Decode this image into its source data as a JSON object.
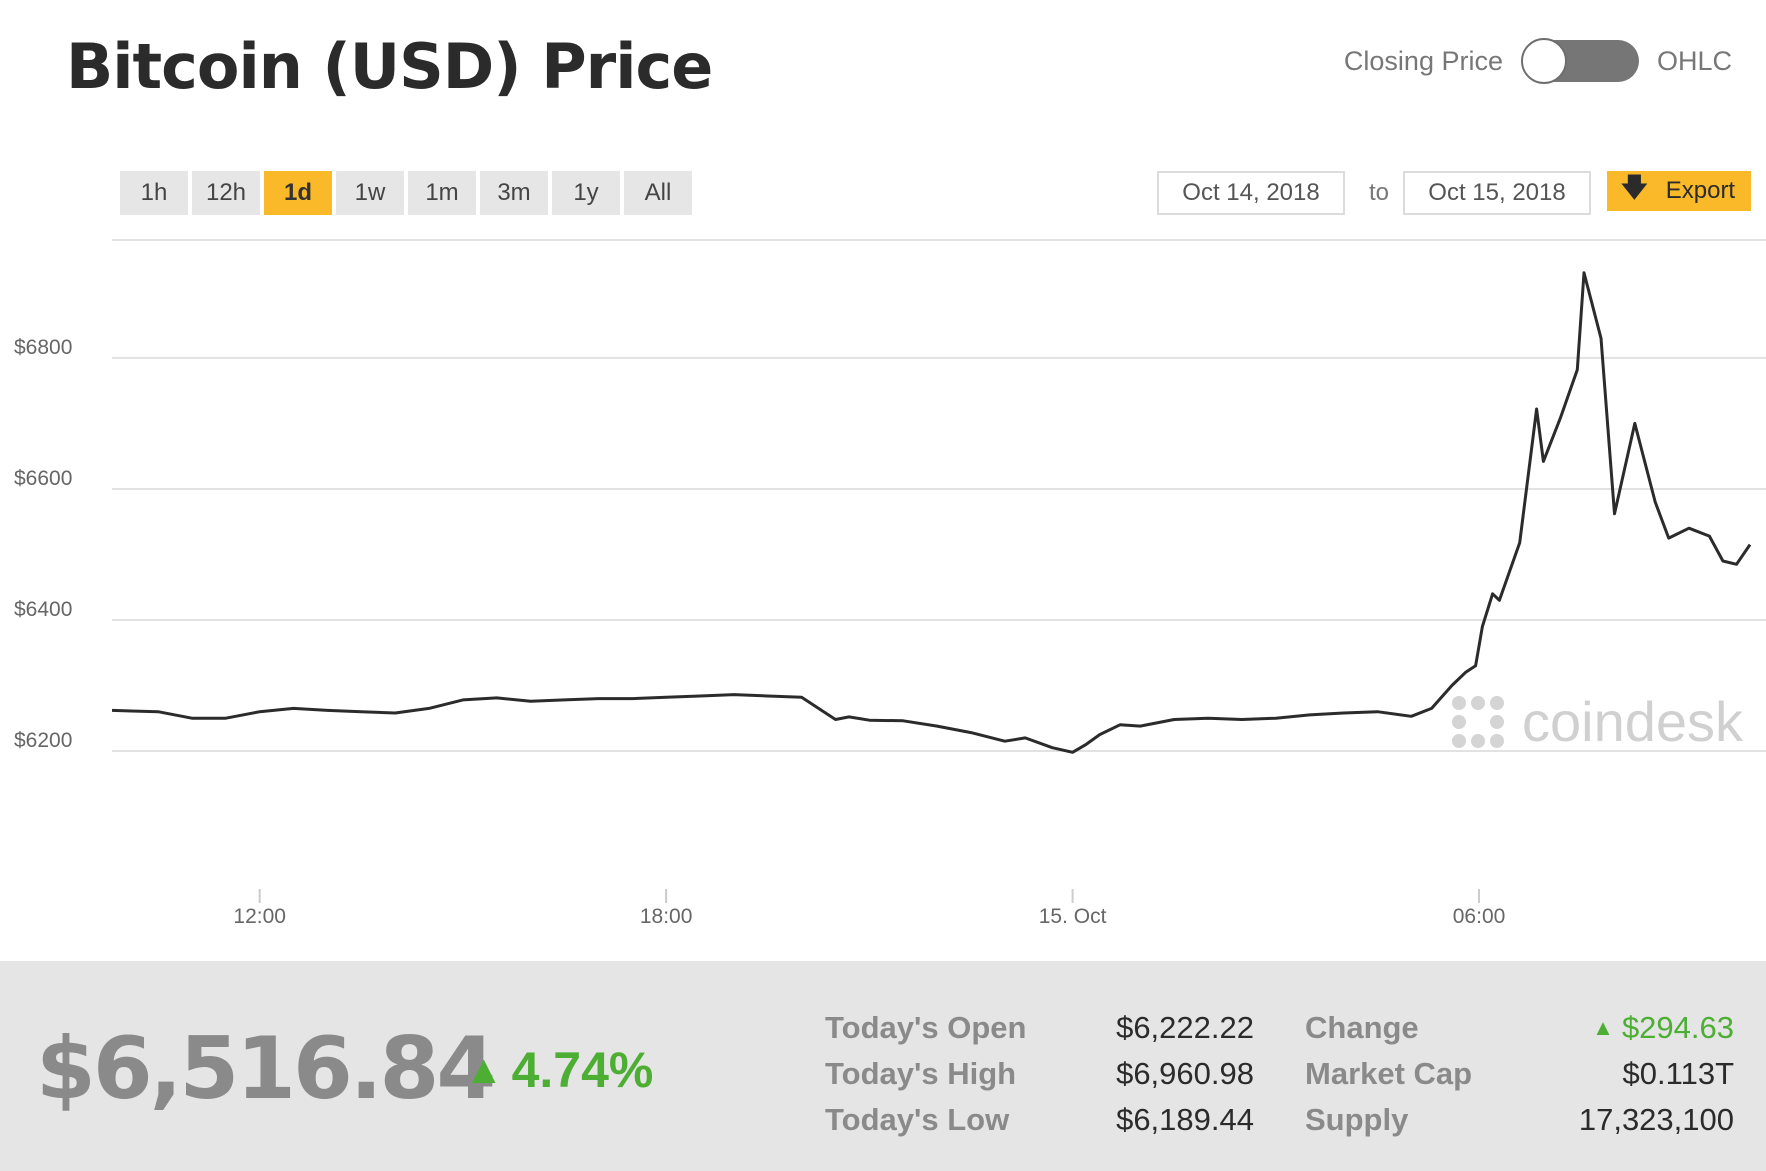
{
  "header": {
    "title": "Bitcoin (USD) Price"
  },
  "price_toggle": {
    "left_label": "Closing Price",
    "right_label": "OHLC",
    "selected": "Closing Price"
  },
  "range_buttons": [
    {
      "label": "1h",
      "active": false
    },
    {
      "label": "12h",
      "active": false
    },
    {
      "label": "1d",
      "active": true
    },
    {
      "label": "1w",
      "active": false
    },
    {
      "label": "1m",
      "active": false
    },
    {
      "label": "3m",
      "active": false
    },
    {
      "label": "1y",
      "active": false
    },
    {
      "label": "All",
      "active": false
    }
  ],
  "date_range": {
    "from": "Oct 14, 2018",
    "to_label": "to",
    "to": "Oct 15, 2018"
  },
  "export": {
    "label": "Export",
    "icon": "download-arrow-icon"
  },
  "watermark": "coindesk",
  "colors": {
    "accent": "#f9b928",
    "line": "#2b2b2b",
    "positive": "#4cae33",
    "footer_bg": "#e5e5e5"
  },
  "chart_data": {
    "type": "line",
    "title": "Bitcoin (USD) Price",
    "ylim": [
      6000,
      6980
    ],
    "yticks": [
      6200,
      6400,
      6600,
      6800
    ],
    "ytick_labels": [
      "$6200",
      "$6400",
      "$6600",
      "$6800"
    ],
    "xticks": [
      {
        "hours": 2.0,
        "label": "12:00"
      },
      {
        "hours": 8.0,
        "label": "18:00"
      },
      {
        "hours": 14.0,
        "label": "15. Oct"
      },
      {
        "hours": 20.0,
        "label": "06:00"
      }
    ],
    "x_hours_range": [
      -0.18,
      24.0
    ],
    "grid": true,
    "series": [
      {
        "x_hours": [
          -0.18,
          0.5,
          1.0,
          1.5,
          2.0,
          2.5,
          3.0,
          3.5,
          4.0,
          4.5,
          5.0,
          5.5,
          6.0,
          6.5,
          7.0,
          7.5,
          8.0,
          8.5,
          9.0,
          9.5,
          10.0,
          10.5,
          10.7,
          11.0,
          11.5,
          12.0,
          12.5,
          13.0,
          13.3,
          13.7,
          14.0,
          14.2,
          14.4,
          14.7,
          15.0,
          15.5,
          16.0,
          16.5,
          17.0,
          17.5,
          18.0,
          18.5,
          19.0,
          19.3,
          19.6,
          19.8,
          19.95,
          20.05,
          20.2,
          20.3,
          20.6,
          20.85,
          20.95,
          21.2,
          21.45,
          21.55,
          21.8,
          22.0,
          22.3,
          22.6,
          22.8,
          23.1,
          23.4,
          23.6,
          23.8,
          24.0
        ],
        "values": [
          6262,
          6260,
          6250,
          6250,
          6260,
          6265,
          6262,
          6260,
          6258,
          6265,
          6278,
          6281,
          6276,
          6278,
          6280,
          6280,
          6282,
          6284,
          6286,
          6284,
          6282,
          6248,
          6252,
          6247,
          6246,
          6238,
          6228,
          6215,
          6220,
          6205,
          6198,
          6210,
          6225,
          6240,
          6238,
          6248,
          6250,
          6248,
          6250,
          6255,
          6258,
          6260,
          6253,
          6265,
          6300,
          6320,
          6330,
          6390,
          6440,
          6430,
          6518,
          6722,
          6642,
          6708,
          6782,
          6930,
          6830,
          6562,
          6700,
          6580,
          6525,
          6540,
          6528,
          6490,
          6485,
          6515
        ]
      }
    ]
  },
  "stats": {
    "price": "$6,516.84",
    "change_pct": "4.74%",
    "todays_open": {
      "label": "Today's Open",
      "value": "$6,222.22"
    },
    "todays_high": {
      "label": "Today's High",
      "value": "$6,960.98"
    },
    "todays_low": {
      "label": "Today's Low",
      "value": "$6,189.44"
    },
    "change": {
      "label": "Change",
      "value": "$294.63"
    },
    "market_cap": {
      "label": "Market Cap",
      "value": "$0.113T"
    },
    "supply": {
      "label": "Supply",
      "value": "17,323,100"
    }
  }
}
